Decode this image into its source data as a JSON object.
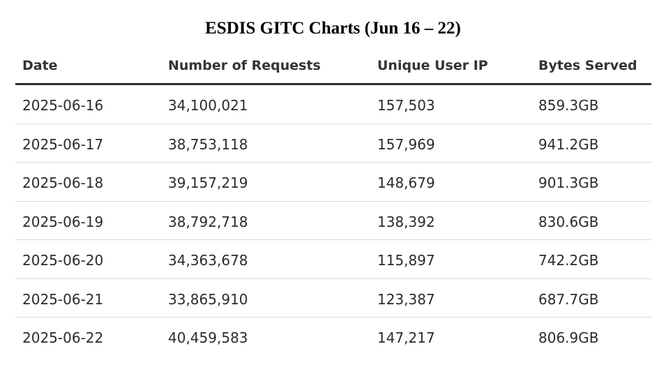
{
  "title": "ESDIS GITC Charts (Jun 16 – 22)",
  "colors": {
    "text": "#2b2b2b",
    "header_rule": "#2e2e2e",
    "row_divider": "#d9d9d9",
    "background": "#ffffff"
  },
  "chart_data": {
    "type": "table",
    "title": "ESDIS GITC Charts (Jun 16 – 22)",
    "columns": [
      "Date",
      "Number of Requests",
      "Unique User IP",
      "Bytes Served"
    ],
    "rows": [
      [
        "2025-06-16",
        "34,100,021",
        "157,503",
        "859.3GB"
      ],
      [
        "2025-06-17",
        "38,753,118",
        "157,969",
        "941.2GB"
      ],
      [
        "2025-06-18",
        "39,157,219",
        "148,679",
        "901.3GB"
      ],
      [
        "2025-06-19",
        "38,792,718",
        "138,392",
        "830.6GB"
      ],
      [
        "2025-06-20",
        "34,363,678",
        "115,897",
        "742.2GB"
      ],
      [
        "2025-06-21",
        "33,865,910",
        "123,387",
        "687.7GB"
      ],
      [
        "2025-06-22",
        "40,459,583",
        "147,217",
        "806.9GB"
      ]
    ]
  }
}
